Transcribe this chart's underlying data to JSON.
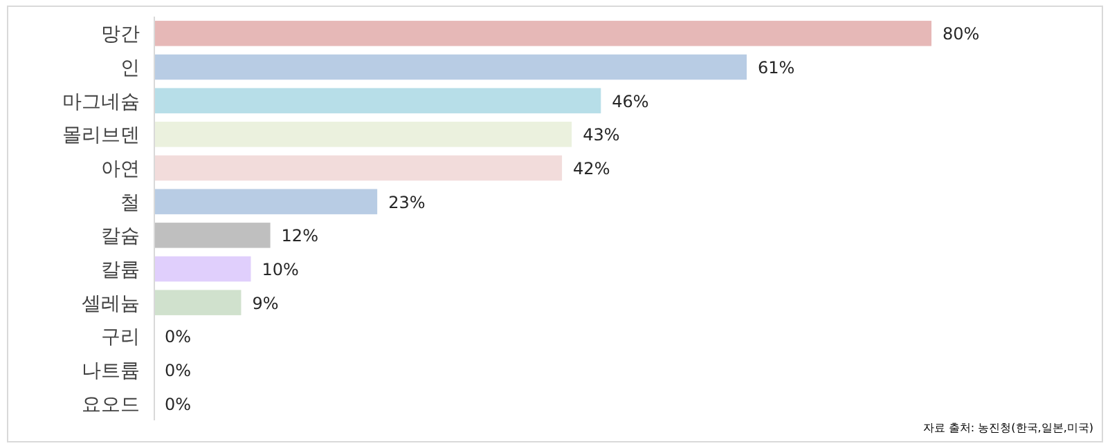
{
  "chart_data": {
    "type": "bar",
    "orientation": "horizontal",
    "categories": [
      "망간",
      "인",
      "마그네슘",
      "몰리브덴",
      "아연",
      "철",
      "칼슘",
      "칼륨",
      "셀레늄",
      "구리",
      "나트륨",
      "요오드"
    ],
    "values": [
      80,
      61,
      46,
      43,
      42,
      23,
      12,
      10,
      9,
      0,
      0,
      0
    ],
    "colors": [
      "#e6b8b7",
      "#b8cce4",
      "#b7dee8",
      "#ebf1de",
      "#f2dcdb",
      "#b8cce4",
      "#bfbfbf",
      "#e0cffc",
      "#d0e1cd",
      "#4f81bd",
      "#4f81bd",
      "#4f81bd"
    ],
    "value_labels": [
      "80%",
      "61%",
      "46%",
      "43%",
      "42%",
      "23%",
      "12%",
      "10%",
      "9%",
      "0%",
      "0%",
      "0%"
    ],
    "annotations": [
      "자료 출처: 농진청(한국,일본,미국)"
    ]
  }
}
